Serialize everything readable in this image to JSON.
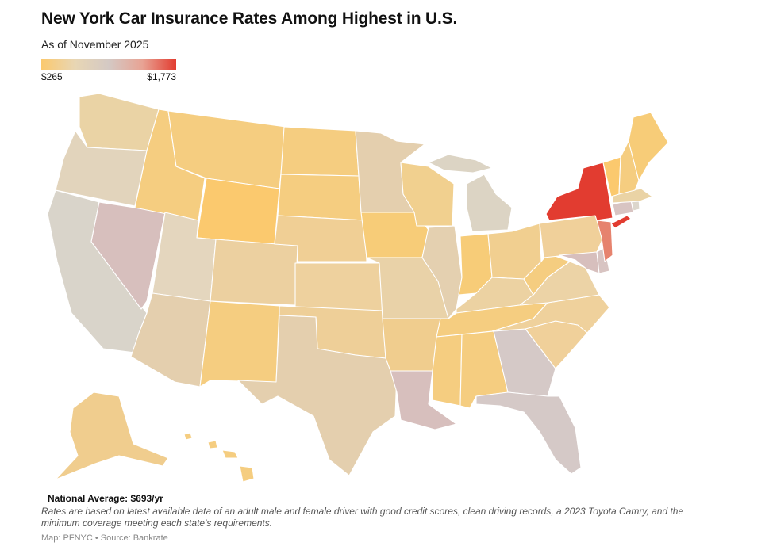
{
  "header": {
    "title": "New York Car Insurance Rates Among Highest in U.S.",
    "subtitle": "As of November 2025"
  },
  "legend": {
    "min_label": "$265",
    "max_label": "$1,773",
    "gradient": [
      "#fbc96e",
      "#e8d6b4",
      "#d4c9c4",
      "#e8a394",
      "#e23c30"
    ]
  },
  "colors": {
    "ny": "#e23c30",
    "nj": "#e6836e",
    "ct_de": "#d8c4c2",
    "la_nv_md": "#d7bfbd",
    "fl_ga": "#d5c9c7",
    "ca": "#d9d4ca",
    "tan": "#e4cfae",
    "light_tan": "#ead3a5",
    "orange": "#f5cd80",
    "bright": "#fbc96e"
  },
  "states": [
    {
      "id": "WA",
      "color": "#ead3a5"
    },
    {
      "id": "OR",
      "color": "#e2d4bc"
    },
    {
      "id": "CA",
      "color": "#d9d4ca"
    },
    {
      "id": "NV",
      "color": "#d7bfbd"
    },
    {
      "id": "ID",
      "color": "#f5cd80"
    },
    {
      "id": "MT",
      "color": "#f5cd80"
    },
    {
      "id": "WY",
      "color": "#fbc96e"
    },
    {
      "id": "UT",
      "color": "#e4d6be"
    },
    {
      "id": "AZ",
      "color": "#e4cfae"
    },
    {
      "id": "CO",
      "color": "#ecd0a0"
    },
    {
      "id": "NM",
      "color": "#f5cd80"
    },
    {
      "id": "ND",
      "color": "#f5cd80"
    },
    {
      "id": "SD",
      "color": "#f5cd80"
    },
    {
      "id": "NE",
      "color": "#f0cf95"
    },
    {
      "id": "KS",
      "color": "#eed19e"
    },
    {
      "id": "OK",
      "color": "#eecf98"
    },
    {
      "id": "TX",
      "color": "#e4cfae"
    },
    {
      "id": "MN",
      "color": "#e4cfae"
    },
    {
      "id": "IA",
      "color": "#f7cc78"
    },
    {
      "id": "MO",
      "color": "#e9d2a8"
    },
    {
      "id": "AR",
      "color": "#f0cd8e"
    },
    {
      "id": "LA",
      "color": "#d7bfbd"
    },
    {
      "id": "WI",
      "color": "#f1d08f"
    },
    {
      "id": "IL",
      "color": "#e4d0b0"
    },
    {
      "id": "MI",
      "color": "#dcd4c4"
    },
    {
      "id": "IN",
      "color": "#f7cc78"
    },
    {
      "id": "OH",
      "color": "#f1cf90"
    },
    {
      "id": "KY",
      "color": "#ecd2a2"
    },
    {
      "id": "TN",
      "color": "#f5cd80"
    },
    {
      "id": "MS",
      "color": "#f5cd80"
    },
    {
      "id": "AL",
      "color": "#f5cd80"
    },
    {
      "id": "GA",
      "color": "#d5c9c7"
    },
    {
      "id": "FL",
      "color": "#d5c9c7"
    },
    {
      "id": "SC",
      "color": "#f0d09a"
    },
    {
      "id": "NC",
      "color": "#efd19c"
    },
    {
      "id": "VA",
      "color": "#ecd3a6"
    },
    {
      "id": "WV",
      "color": "#f5cd80"
    },
    {
      "id": "PA",
      "color": "#f0d09a"
    },
    {
      "id": "NY",
      "color": "#e23c30"
    },
    {
      "id": "NJ",
      "color": "#e6836e"
    },
    {
      "id": "MD",
      "color": "#d7bfbd"
    },
    {
      "id": "DE",
      "color": "#d8c4c2"
    },
    {
      "id": "CT",
      "color": "#d8c4c2"
    },
    {
      "id": "RI",
      "color": "#dcd6cc"
    },
    {
      "id": "MA",
      "color": "#ead3a5"
    },
    {
      "id": "VT",
      "color": "#fbc96e"
    },
    {
      "id": "NH",
      "color": "#f5cd80"
    },
    {
      "id": "ME",
      "color": "#f7cc78"
    },
    {
      "id": "AK",
      "color": "#f0cd8e"
    },
    {
      "id": "HI",
      "color": "#f5cd80"
    }
  ],
  "footer": {
    "national_average": "National Average: $693/yr",
    "note": "Rates are based on latest available data of an adult male and female driver with good credit scores, clean driving records, a 2023 Toyota Camry, and the minimum coverage meeting each state's requirements.",
    "credit": "Map: PFNYC • Source: Bankrate"
  }
}
